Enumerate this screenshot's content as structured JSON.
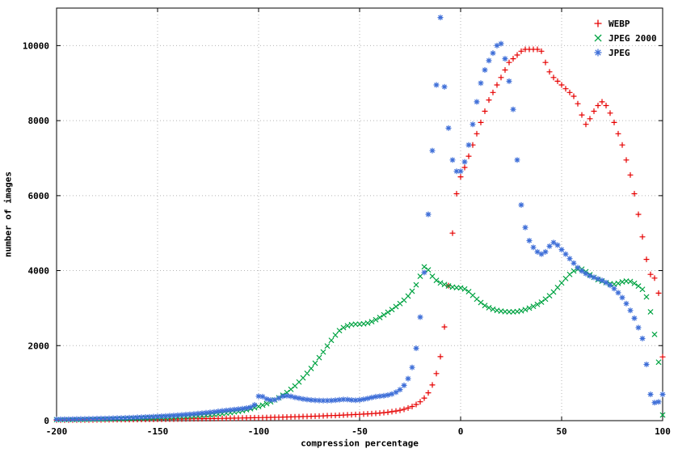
{
  "chart_data": {
    "type": "scatter",
    "title": "",
    "xlabel": "compression percentage",
    "ylabel": "number of images",
    "xlim": [
      -200,
      100
    ],
    "ylim": [
      0,
      11000
    ],
    "xticks": [
      -200,
      -150,
      -100,
      -50,
      0,
      50,
      100
    ],
    "yticks": [
      0,
      2000,
      4000,
      6000,
      8000,
      10000
    ],
    "grid": true,
    "legend_position": "top-right",
    "x": [
      -200,
      -198,
      -196,
      -194,
      -192,
      -190,
      -188,
      -186,
      -184,
      -182,
      -180,
      -178,
      -176,
      -174,
      -172,
      -170,
      -168,
      -166,
      -164,
      -162,
      -160,
      -158,
      -156,
      -154,
      -152,
      -150,
      -148,
      -146,
      -144,
      -142,
      -140,
      -138,
      -136,
      -134,
      -132,
      -130,
      -128,
      -126,
      -124,
      -122,
      -120,
      -118,
      -116,
      -114,
      -112,
      -110,
      -108,
      -106,
      -104,
      -102,
      -100,
      -98,
      -96,
      -94,
      -92,
      -90,
      -88,
      -86,
      -84,
      -82,
      -80,
      -78,
      -76,
      -74,
      -72,
      -70,
      -68,
      -66,
      -64,
      -62,
      -60,
      -58,
      -56,
      -54,
      -52,
      -50,
      -48,
      -46,
      -44,
      -42,
      -40,
      -38,
      -36,
      -34,
      -32,
      -30,
      -28,
      -26,
      -24,
      -22,
      -20,
      -18,
      -16,
      -14,
      -12,
      -10,
      -8,
      -6,
      -4,
      -2,
      0,
      2,
      4,
      6,
      8,
      10,
      12,
      14,
      16,
      18,
      20,
      22,
      24,
      26,
      28,
      30,
      32,
      34,
      36,
      38,
      40,
      42,
      44,
      46,
      48,
      50,
      52,
      54,
      56,
      58,
      60,
      62,
      64,
      66,
      68,
      70,
      72,
      74,
      76,
      78,
      80,
      82,
      84,
      86,
      88,
      90,
      92,
      94,
      96,
      98,
      100
    ],
    "series": [
      {
        "name": "WEBP",
        "color": "#e60000",
        "marker": "plus",
        "values": [
          15,
          15,
          16,
          16,
          17,
          18,
          18,
          19,
          20,
          20,
          21,
          22,
          23,
          24,
          25,
          26,
          27,
          28,
          29,
          30,
          31,
          32,
          33,
          34,
          35,
          36,
          37,
          39,
          40,
          41,
          43,
          44,
          46,
          47,
          49,
          50,
          52,
          54,
          55,
          57,
          59,
          61,
          63,
          65,
          67,
          69,
          71,
          73,
          75,
          77,
          79,
          81,
          84,
          86,
          89,
          91,
          94,
          97,
          100,
          103,
          106,
          109,
          112,
          116,
          119,
          123,
          127,
          131,
          135,
          139,
          143,
          148,
          153,
          158,
          163,
          169,
          175,
          181,
          188,
          195,
          203,
          213,
          225,
          239,
          256,
          277,
          303,
          336,
          378,
          432,
          502,
          602,
          742,
          952,
          1255,
          1705,
          2500,
          3600,
          5000,
          6050,
          6500,
          6750,
          7050,
          7350,
          7650,
          7950,
          8250,
          8550,
          8750,
          8950,
          9150,
          9350,
          9550,
          9650,
          9750,
          9850,
          9900,
          9900,
          9900,
          9900,
          9850,
          9550,
          9300,
          9150,
          9050,
          8950,
          8850,
          8750,
          8650,
          8450,
          8150,
          7900,
          8050,
          8250,
          8400,
          8500,
          8400,
          8200,
          7950,
          7650,
          7350,
          6950,
          6550,
          6050,
          5500,
          4900,
          4300,
          3900,
          3800,
          3400,
          1700
        ]
      },
      {
        "name": "JPEG 2000",
        "color": "#00a342",
        "marker": "cross",
        "values": [
          25,
          26,
          27,
          28,
          29,
          30,
          31,
          33,
          34,
          36,
          37,
          39,
          41,
          43,
          45,
          47,
          49,
          51,
          54,
          56,
          59,
          62,
          65,
          68,
          71,
          75,
          79,
          83,
          87,
          92,
          97,
          102,
          108,
          114,
          121,
          128,
          136,
          144,
          153,
          163,
          174,
          186,
          199,
          214,
          230,
          248,
          268,
          291,
          316,
          345,
          377,
          413,
          454,
          500,
          552,
          611,
          677,
          751,
          834,
          926,
          1030,
          1141,
          1261,
          1391,
          1531,
          1681,
          1831,
          1991,
          2141,
          2281,
          2401,
          2481,
          2531,
          2561,
          2571,
          2571,
          2581,
          2601,
          2641,
          2691,
          2751,
          2821,
          2891,
          2961,
          3041,
          3121,
          3211,
          3321,
          3451,
          3621,
          3851,
          4101,
          4021,
          3851,
          3741,
          3671,
          3631,
          3591,
          3561,
          3545,
          3540,
          3510,
          3440,
          3340,
          3240,
          3150,
          3070,
          3010,
          2970,
          2940,
          2920,
          2905,
          2900,
          2900,
          2910,
          2930,
          2960,
          3000,
          3045,
          3100,
          3160,
          3240,
          3330,
          3430,
          3550,
          3670,
          3790,
          3900,
          3990,
          4040,
          4040,
          3970,
          3890,
          3820,
          3760,
          3720,
          3680,
          3650,
          3640,
          3660,
          3700,
          3720,
          3710,
          3660,
          3590,
          3500,
          3300,
          2900,
          2300,
          1560,
          150
        ]
      },
      {
        "name": "JPEG",
        "color": "#3f6fd8",
        "marker": "star",
        "values": [
          35,
          36,
          38,
          39,
          41,
          43,
          45,
          47,
          49,
          51,
          54,
          56,
          59,
          62,
          65,
          68,
          72,
          75,
          79,
          83,
          88,
          92,
          97,
          102,
          107,
          113,
          119,
          125,
          132,
          139,
          146,
          154,
          162,
          171,
          180,
          190,
          200,
          211,
          222,
          234,
          247,
          260,
          272,
          284,
          296,
          308,
          320,
          335,
          355,
          420,
          650,
          640,
          575,
          550,
          555,
          600,
          650,
          662,
          648,
          620,
          598,
          578,
          562,
          550,
          542,
          538,
          535,
          534,
          537,
          545,
          556,
          566,
          562,
          550,
          544,
          552,
          570,
          592,
          616,
          638,
          652,
          664,
          682,
          710,
          756,
          828,
          940,
          1120,
          1420,
          1930,
          2760,
          3950,
          5500,
          7200,
          8950,
          10750,
          8900,
          7800,
          6950,
          6650,
          6650,
          6900,
          7350,
          7900,
          8500,
          9000,
          9350,
          9600,
          9800,
          10000,
          10050,
          9650,
          9050,
          8300,
          6950,
          5750,
          5150,
          4800,
          4620,
          4500,
          4440,
          4500,
          4650,
          4750,
          4680,
          4560,
          4440,
          4320,
          4200,
          4080,
          3990,
          3920,
          3860,
          3820,
          3780,
          3740,
          3680,
          3610,
          3520,
          3410,
          3280,
          3120,
          2940,
          2730,
          2480,
          2190,
          1500,
          700,
          480,
          500,
          700
        ]
      }
    ]
  }
}
